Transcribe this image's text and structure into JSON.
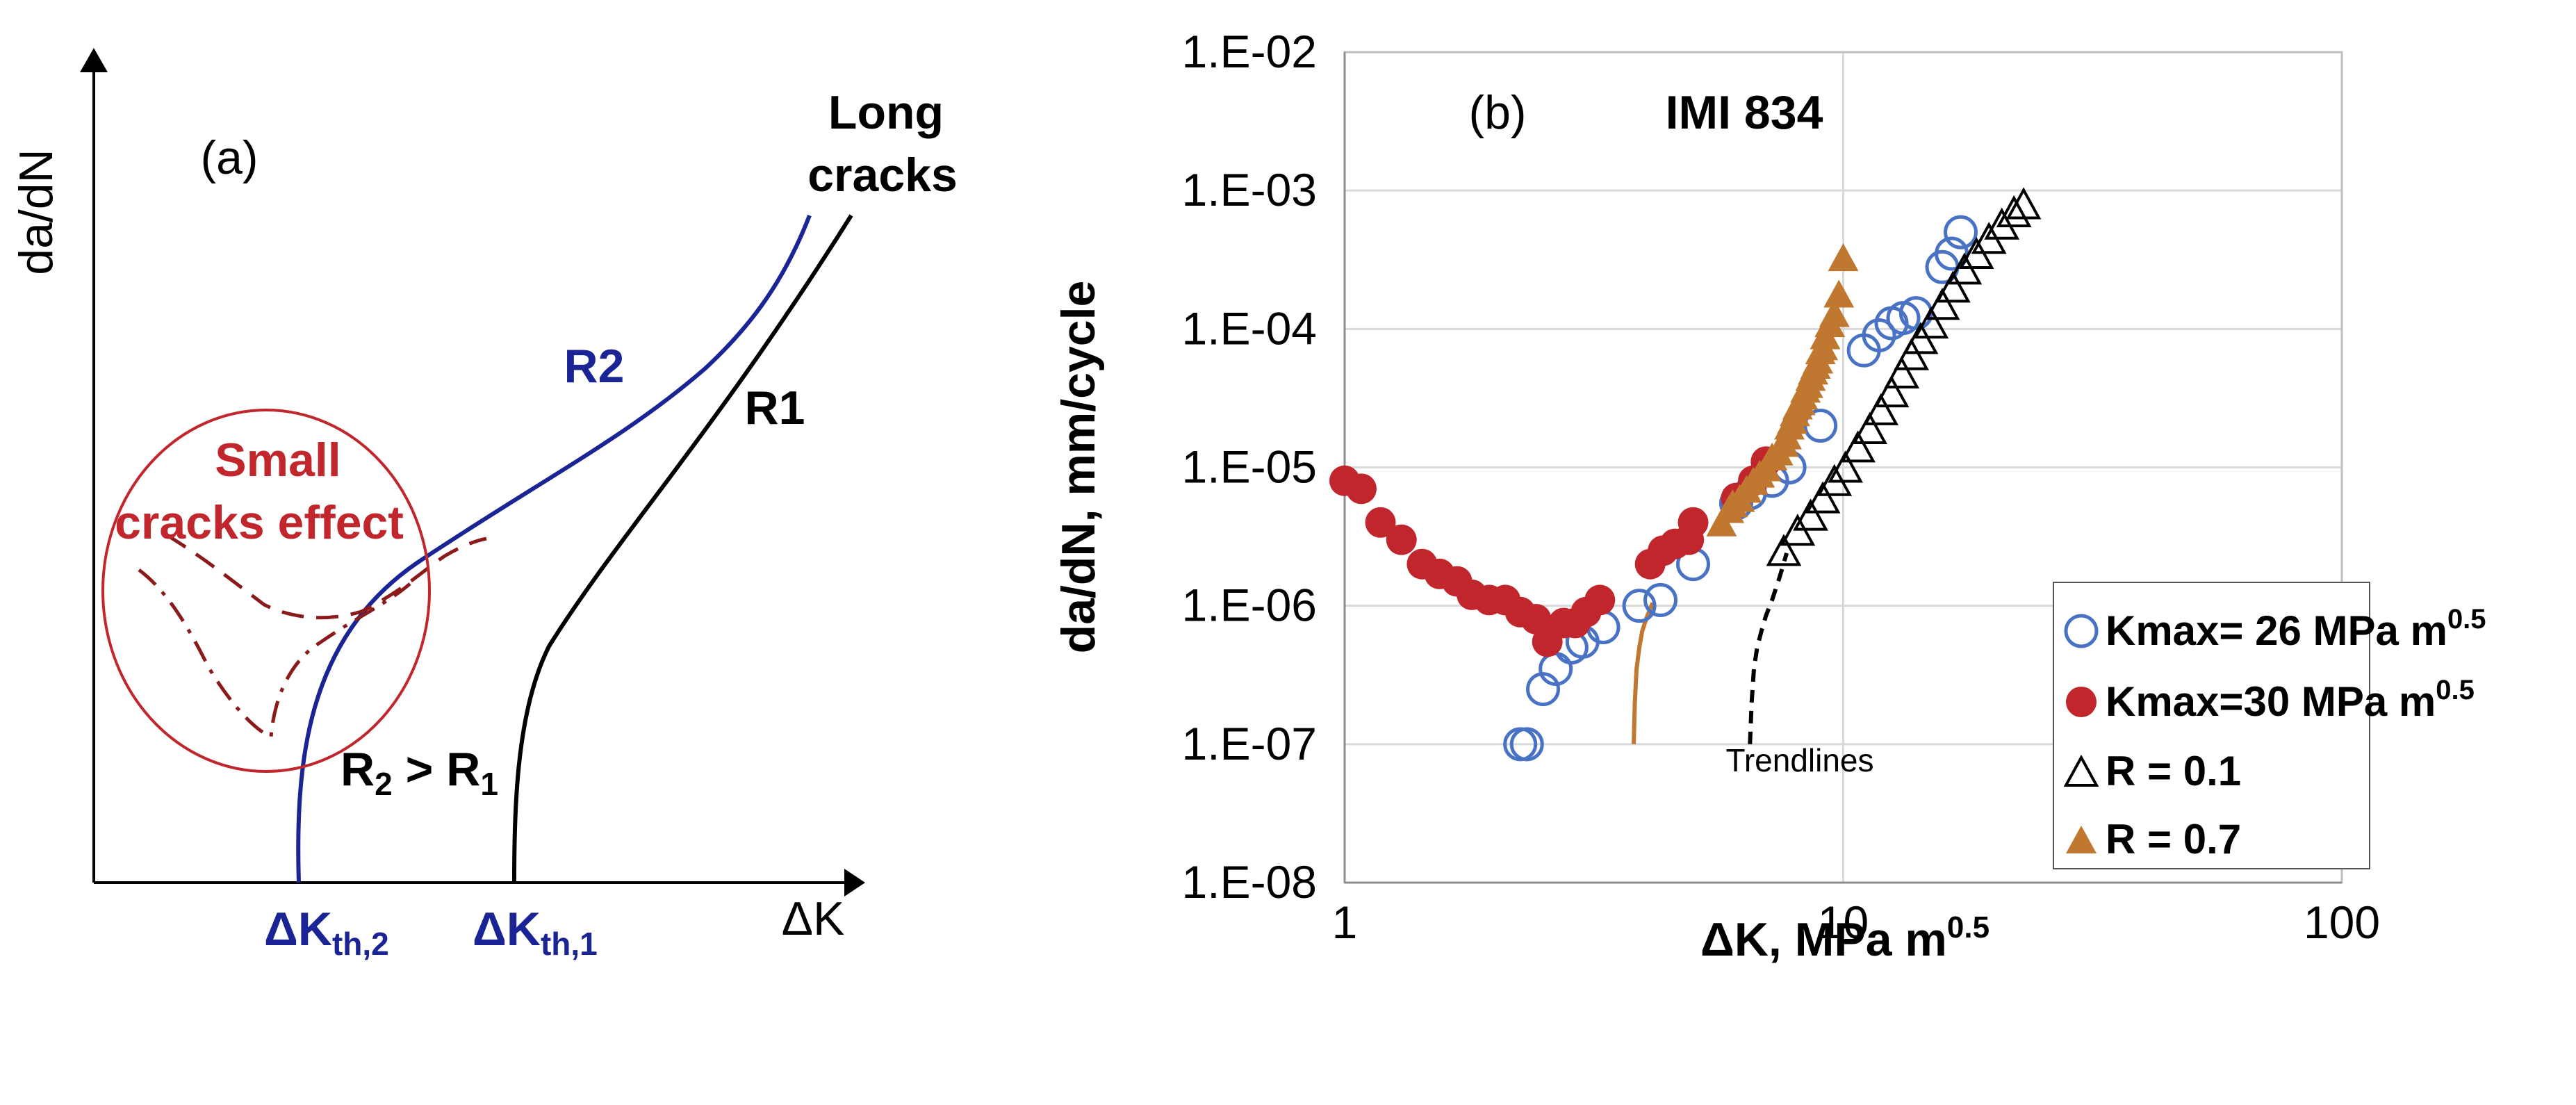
{
  "chart_data": [
    {
      "type": "line",
      "panel_label": "(a)",
      "schematic": true,
      "ylabel": "da/dN",
      "xlabel": "ΔK",
      "series": [
        {
          "name": "R1",
          "color": "#000000"
        },
        {
          "name": "R2",
          "color": "#1a2494"
        }
      ],
      "annotations": {
        "long_cracks_line1": "Long",
        "long_cracks_line2": "cracks",
        "small_line1": "Small",
        "small_line2": "cracks effect",
        "r_relation_main": "R",
        "r_relation_sub2": "2",
        "r_relation_mid": " > R",
        "r_relation_sub1": "1"
      },
      "x_ticks": [
        {
          "main": "ΔK",
          "sub": "th,2"
        },
        {
          "main": "ΔK",
          "sub": "th,1"
        }
      ]
    },
    {
      "type": "scatter",
      "panel_label": "(b)",
      "title": "IMI 834",
      "xscale": "log",
      "yscale": "log",
      "xlim": [
        1,
        100
      ],
      "ylim": [
        1e-08,
        0.01
      ],
      "xlabel_main": "ΔK, MPa m",
      "xlabel_sup": "0.5",
      "ylabel": "da/dN, mm/cycle",
      "x_tick_labels": [
        "1",
        "10",
        "100"
      ],
      "x_ticks": [
        1,
        10,
        100
      ],
      "y_tick_labels": [
        "1.E-08",
        "1.E-07",
        "1.E-06",
        "1.E-05",
        "1.E-04",
        "1.E-03",
        "1.E-02"
      ],
      "y_ticks": [
        1e-08,
        1e-07,
        1e-06,
        1e-05,
        0.0001,
        0.001,
        0.01
      ],
      "annotation": "Trendlines",
      "series": [
        {
          "name": "Kmax= 26 MPa m",
          "name_sup": "0.5",
          "marker": "open-circle",
          "color": "#4a72c4",
          "x": [
            2.25,
            2.32,
            2.5,
            2.65,
            2.85,
            3.0,
            3.3,
            3.9,
            4.3,
            5.0,
            6.1,
            6.5,
            7.2,
            7.8,
            9.0,
            11.0,
            11.8,
            12.5,
            13.2,
            14.0,
            15.8,
            16.5,
            17.2
          ],
          "y": [
            1e-07,
            1e-07,
            2.5e-07,
            3.5e-07,
            5e-07,
            5.5e-07,
            7e-07,
            1e-06,
            1.1e-06,
            2e-06,
            5.5e-06,
            6.5e-06,
            8e-06,
            1e-05,
            2e-05,
            7e-05,
            9e-05,
            0.00011,
            0.00012,
            0.00013,
            0.00028,
            0.00035,
            0.0005
          ]
        },
        {
          "name": "Kmax=30 MPa m",
          "name_sup": "0.5",
          "marker": "filled-circle",
          "color": "#c0262c",
          "x": [
            1.0,
            1.08,
            1.18,
            1.3,
            1.43,
            1.55,
            1.68,
            1.8,
            1.95,
            2.1,
            2.25,
            2.42,
            2.55,
            2.75,
            2.9,
            3.05,
            3.25,
            4.1,
            4.35,
            4.6,
            4.9,
            5.0,
            6.1,
            6.6,
            7.0
          ],
          "y": [
            8e-06,
            7e-06,
            4e-06,
            3e-06,
            2e-06,
            1.7e-06,
            1.5e-06,
            1.2e-06,
            1.1e-06,
            1.1e-06,
            9e-07,
            8e-07,
            5.5e-07,
            7.5e-07,
            7.5e-07,
            9e-07,
            1.1e-06,
            2e-06,
            2.5e-06,
            2.8e-06,
            3e-06,
            4e-06,
            6e-06,
            8e-06,
            1.1e-05
          ]
        },
        {
          "name": "R = 0.1",
          "marker": "open-triangle",
          "color": "#000000",
          "x": [
            7.6,
            8.1,
            8.6,
            9.1,
            9.6,
            10.1,
            10.7,
            11.3,
            11.9,
            12.5,
            13.1,
            13.7,
            14.3,
            15.0,
            15.8,
            16.6,
            17.5,
            18.5,
            19.6,
            20.8,
            22.0,
            23.0
          ],
          "y": [
            2.5e-06,
            3.5e-06,
            4.5e-06,
            6e-06,
            8e-06,
            1e-05,
            1.4e-05,
            1.9e-05,
            2.6e-05,
            3.5e-05,
            4.8e-05,
            6.5e-05,
            8.5e-05,
            0.00011,
            0.00015,
            0.0002,
            0.00027,
            0.00035,
            0.00045,
            0.00057,
            0.0007,
            0.0008
          ]
        },
        {
          "name": "R = 0.7",
          "marker": "filled-triangle",
          "color": "#c07830",
          "x": [
            5.7,
            5.9,
            6.0,
            6.2,
            6.4,
            6.6,
            6.8,
            7.0,
            7.2,
            7.4,
            7.6,
            7.7,
            7.8,
            7.9,
            8.0,
            8.1,
            8.2,
            8.3,
            8.4,
            8.5,
            8.6,
            8.7,
            8.8,
            8.9,
            9.0,
            9.1,
            9.2,
            9.4,
            9.6,
            9.8,
            10.0
          ],
          "y": [
            4e-06,
            5e-06,
            5.5e-06,
            6e-06,
            7e-06,
            8e-06,
            9e-06,
            1e-05,
            1.2e-05,
            1.3e-05,
            1.5e-05,
            1.7e-05,
            2e-05,
            2.2e-05,
            2.5e-05,
            2.8e-05,
            3e-05,
            3.3e-05,
            3.7e-05,
            4e-05,
            4.5e-05,
            5e-05,
            5.5e-05,
            6e-05,
            7e-05,
            7.5e-05,
            9e-05,
            0.00011,
            0.00013,
            0.00018,
            0.00033
          ]
        }
      ],
      "trendlines": [
        {
          "color": "#c07830",
          "style": "solid",
          "x": [
            3.8,
            3.82,
            3.85,
            3.9,
            3.95,
            4.0,
            4.05,
            4.1,
            4.15
          ],
          "y": [
            1e-07,
            2e-07,
            3.5e-07,
            5e-07,
            6.5e-07,
            7.5e-07,
            8.5e-07,
            9.5e-07,
            1.05e-06
          ]
        },
        {
          "color": "#000000",
          "style": "dashed",
          "x": [
            6.5,
            6.55,
            6.62,
            6.72,
            6.85,
            7.0,
            7.2,
            7.45,
            7.7
          ],
          "y": [
            1e-07,
            2e-07,
            3.5e-07,
            5e-07,
            6.5e-07,
            8.5e-07,
            1.1e-06,
            1.6e-06,
            2.4e-06
          ]
        }
      ]
    }
  ]
}
